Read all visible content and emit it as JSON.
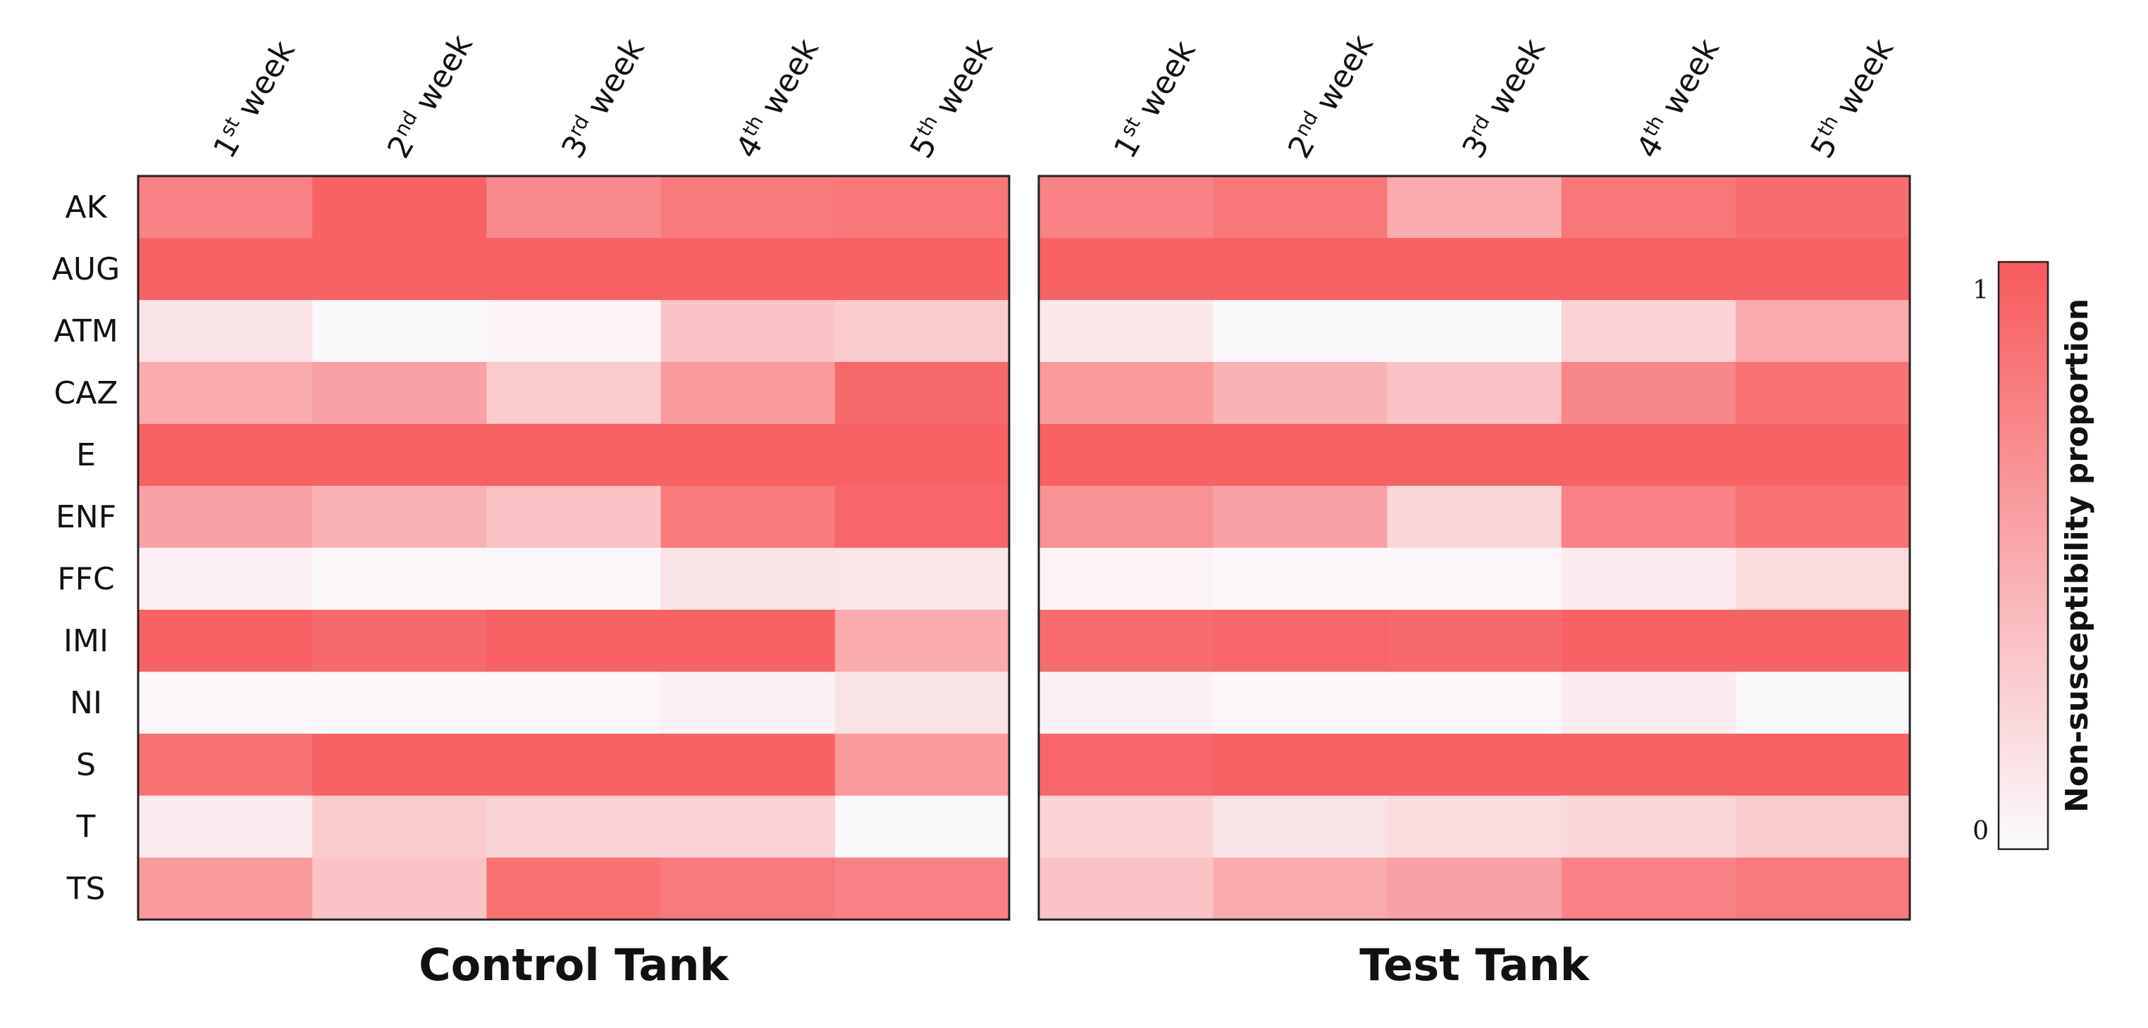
{
  "chart_data": {
    "type": "heatmap",
    "row_labels": [
      "AK",
      "AUG",
      "ATM",
      "CAZ",
      "E",
      "ENF",
      "FFC",
      "IMI",
      "NI",
      "S",
      "T",
      "TS"
    ],
    "columns": [
      {
        "num": "1",
        "sup": "st",
        "rest": " week"
      },
      {
        "num": "2",
        "sup": "nd",
        "rest": " week"
      },
      {
        "num": "3",
        "sup": "rd",
        "rest": " week"
      },
      {
        "num": "4",
        "sup": "th",
        "rest": " week"
      },
      {
        "num": "5",
        "sup": "th",
        "rest": " week"
      }
    ],
    "panels": [
      {
        "title": "Control Tank",
        "values": [
          [
            0.75,
            0.95,
            0.7,
            0.8,
            0.82
          ],
          [
            0.95,
            0.95,
            0.95,
            0.95,
            0.95
          ],
          [
            0.15,
            0.02,
            0.05,
            0.35,
            0.3
          ],
          [
            0.5,
            0.55,
            0.3,
            0.6,
            0.9
          ],
          [
            0.95,
            0.95,
            0.95,
            0.95,
            0.95
          ],
          [
            0.55,
            0.45,
            0.35,
            0.8,
            0.92
          ],
          [
            0.07,
            0.03,
            0.03,
            0.15,
            0.13
          ],
          [
            0.95,
            0.9,
            0.95,
            0.95,
            0.5
          ],
          [
            0.03,
            0.03,
            0.03,
            0.07,
            0.15
          ],
          [
            0.85,
            0.95,
            0.95,
            0.95,
            0.6
          ],
          [
            0.1,
            0.3,
            0.25,
            0.25,
            0.02
          ],
          [
            0.6,
            0.35,
            0.85,
            0.8,
            0.75
          ]
        ]
      },
      {
        "title": "Test Tank",
        "values": [
          [
            0.75,
            0.82,
            0.5,
            0.82,
            0.88
          ],
          [
            0.95,
            0.95,
            0.95,
            0.95,
            0.95
          ],
          [
            0.12,
            0.02,
            0.02,
            0.25,
            0.5
          ],
          [
            0.6,
            0.45,
            0.35,
            0.72,
            0.85
          ],
          [
            0.95,
            0.95,
            0.95,
            0.95,
            0.95
          ],
          [
            0.65,
            0.55,
            0.22,
            0.75,
            0.85
          ],
          [
            0.05,
            0.03,
            0.03,
            0.1,
            0.2
          ],
          [
            0.88,
            0.92,
            0.9,
            0.95,
            0.95
          ],
          [
            0.07,
            0.03,
            0.03,
            0.1,
            0.02
          ],
          [
            0.92,
            0.95,
            0.95,
            0.95,
            0.95
          ],
          [
            0.25,
            0.15,
            0.2,
            0.22,
            0.3
          ],
          [
            0.35,
            0.5,
            0.55,
            0.75,
            0.8
          ]
        ]
      }
    ],
    "colorbar": {
      "title": "Non-susceptibility proportion",
      "min_label": "0",
      "max_label": "1",
      "range": [
        0,
        1
      ],
      "low_color": "#fbfbfe",
      "high_color": "#f75a5c"
    }
  }
}
